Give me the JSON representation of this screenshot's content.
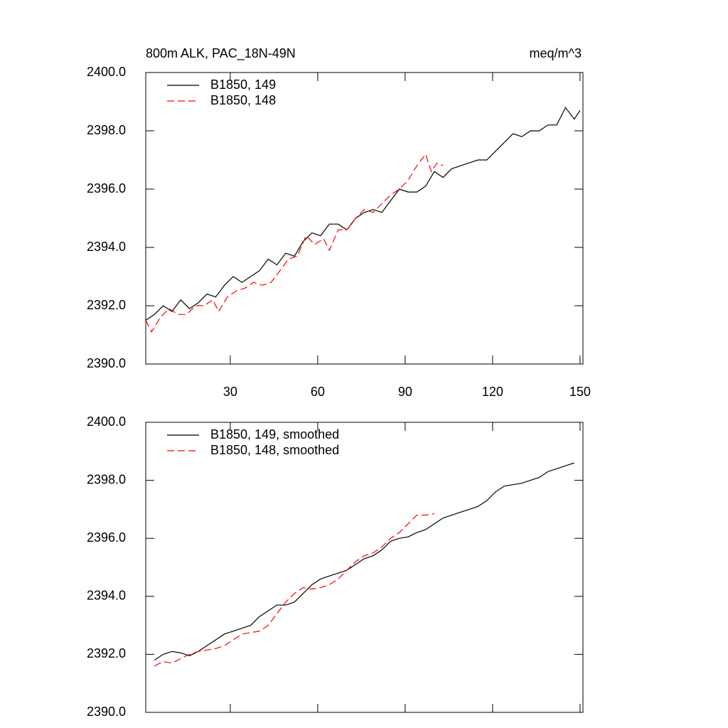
{
  "chart_data": [
    {
      "type": "line",
      "title": "800m ALK, PAC_18N-49N",
      "units": "meq/m^3",
      "xlim": [
        1,
        151
      ],
      "xticks": [
        30,
        60,
        90,
        120,
        150
      ],
      "xtick_labels": true,
      "ylim": [
        2390,
        2400
      ],
      "yticks": [
        {
          "value": 2390,
          "label": "2390.0"
        },
        {
          "value": 2392,
          "label": "2392.0"
        },
        {
          "value": 2394,
          "label": "2394.0"
        },
        {
          "value": 2396,
          "label": "2396.0"
        },
        {
          "value": 2398,
          "label": "2398.0"
        },
        {
          "value": 2400,
          "label": "2400.0"
        }
      ],
      "series": [
        {
          "name": "B1850, 149",
          "color": "#000000",
          "dash": false,
          "x": [
            1,
            4,
            7,
            10,
            13,
            16,
            19,
            22,
            25,
            28,
            31,
            34,
            37,
            40,
            43,
            46,
            49,
            52,
            55,
            58,
            61,
            64,
            67,
            70,
            73,
            76,
            79,
            82,
            85,
            88,
            91,
            94,
            97,
            100,
            103,
            106,
            109,
            112,
            115,
            118,
            121,
            124,
            127,
            130,
            133,
            136,
            139,
            142,
            145,
            148,
            150
          ],
          "values": [
            2391.5,
            2391.7,
            2392.0,
            2391.8,
            2392.2,
            2391.9,
            2392.1,
            2392.4,
            2392.3,
            2392.7,
            2393.0,
            2392.8,
            2393.0,
            2393.2,
            2393.6,
            2393.4,
            2393.8,
            2393.7,
            2394.2,
            2394.5,
            2394.4,
            2394.8,
            2394.8,
            2394.6,
            2395.0,
            2395.2,
            2395.3,
            2395.2,
            2395.6,
            2396.0,
            2395.9,
            2395.9,
            2396.1,
            2396.6,
            2396.4,
            2396.7,
            2396.8,
            2396.9,
            2397.0,
            2397.0,
            2397.3,
            2397.6,
            2397.9,
            2397.8,
            2398.0,
            2398.0,
            2398.2,
            2398.2,
            2398.8,
            2398.4,
            2398.7
          ]
        },
        {
          "name": "B1850, 148",
          "color": "#ff0000",
          "dash": true,
          "x": [
            1,
            3,
            6,
            9,
            12,
            15,
            18,
            21,
            24,
            26,
            29,
            32,
            35,
            38,
            41,
            44,
            47,
            50,
            53,
            56,
            59,
            62,
            64,
            67,
            70,
            73,
            76,
            79,
            82,
            85,
            88,
            91,
            94,
            97,
            99,
            101,
            103
          ],
          "values": [
            2391.5,
            2391.1,
            2391.6,
            2391.9,
            2391.7,
            2391.7,
            2392.0,
            2392.0,
            2392.2,
            2391.8,
            2392.3,
            2392.5,
            2392.6,
            2392.8,
            2392.7,
            2392.8,
            2393.2,
            2393.6,
            2393.7,
            2394.4,
            2394.1,
            2394.3,
            2393.9,
            2394.6,
            2394.6,
            2395.0,
            2395.3,
            2395.2,
            2395.5,
            2395.8,
            2396.0,
            2396.3,
            2396.8,
            2397.2,
            2396.6,
            2396.9,
            2396.8
          ]
        }
      ]
    },
    {
      "type": "line",
      "xlim": [
        1,
        151
      ],
      "xticks": [
        30,
        60,
        90,
        120,
        150
      ],
      "xtick_labels": false,
      "ylim": [
        2390,
        2400
      ],
      "yticks": [
        {
          "value": 2390,
          "label": "2390.0"
        },
        {
          "value": 2392,
          "label": "2392.0"
        },
        {
          "value": 2394,
          "label": "2394.0"
        },
        {
          "value": 2396,
          "label": "2396.0"
        },
        {
          "value": 2398,
          "label": "2398.0"
        },
        {
          "value": 2400,
          "label": "2400.0"
        }
      ],
      "series": [
        {
          "name": "B1850, 149, smoothed",
          "color": "#000000",
          "dash": false,
          "x": [
            4,
            7,
            10,
            13,
            16,
            19,
            22,
            25,
            28,
            31,
            34,
            37,
            40,
            43,
            46,
            49,
            52,
            55,
            58,
            61,
            64,
            67,
            70,
            73,
            76,
            79,
            82,
            85,
            88,
            91,
            94,
            97,
            100,
            103,
            106,
            109,
            112,
            115,
            118,
            121,
            124,
            127,
            130,
            133,
            136,
            139,
            142,
            145,
            148
          ],
          "values": [
            2391.8,
            2392.0,
            2392.1,
            2392.05,
            2391.95,
            2392.1,
            2392.3,
            2392.5,
            2392.7,
            2392.8,
            2392.9,
            2393.0,
            2393.3,
            2393.5,
            2393.7,
            2393.7,
            2393.8,
            2394.1,
            2394.4,
            2394.6,
            2394.7,
            2394.8,
            2394.9,
            2395.1,
            2395.3,
            2395.4,
            2395.6,
            2395.9,
            2396.0,
            2396.05,
            2396.2,
            2396.3,
            2396.5,
            2396.7,
            2396.8,
            2396.9,
            2397.0,
            2397.1,
            2397.3,
            2397.6,
            2397.8,
            2397.85,
            2397.9,
            2398.0,
            2398.1,
            2398.3,
            2398.4,
            2398.5,
            2398.6
          ]
        },
        {
          "name": "B1850, 148, smoothed",
          "color": "#ff0000",
          "dash": true,
          "x": [
            4,
            7,
            10,
            13,
            16,
            19,
            22,
            25,
            28,
            31,
            34,
            37,
            40,
            43,
            46,
            49,
            52,
            55,
            58,
            61,
            64,
            67,
            70,
            73,
            76,
            79,
            82,
            85,
            88,
            91,
            94,
            97,
            100
          ],
          "values": [
            2391.6,
            2391.75,
            2391.7,
            2391.85,
            2392.0,
            2392.1,
            2392.15,
            2392.2,
            2392.3,
            2392.5,
            2392.7,
            2392.75,
            2392.8,
            2393.0,
            2393.4,
            2393.8,
            2394.1,
            2394.3,
            2394.25,
            2394.3,
            2394.4,
            2394.6,
            2394.9,
            2395.2,
            2395.4,
            2395.5,
            2395.7,
            2396.0,
            2396.2,
            2396.5,
            2396.8,
            2396.8,
            2396.85
          ]
        }
      ]
    }
  ]
}
